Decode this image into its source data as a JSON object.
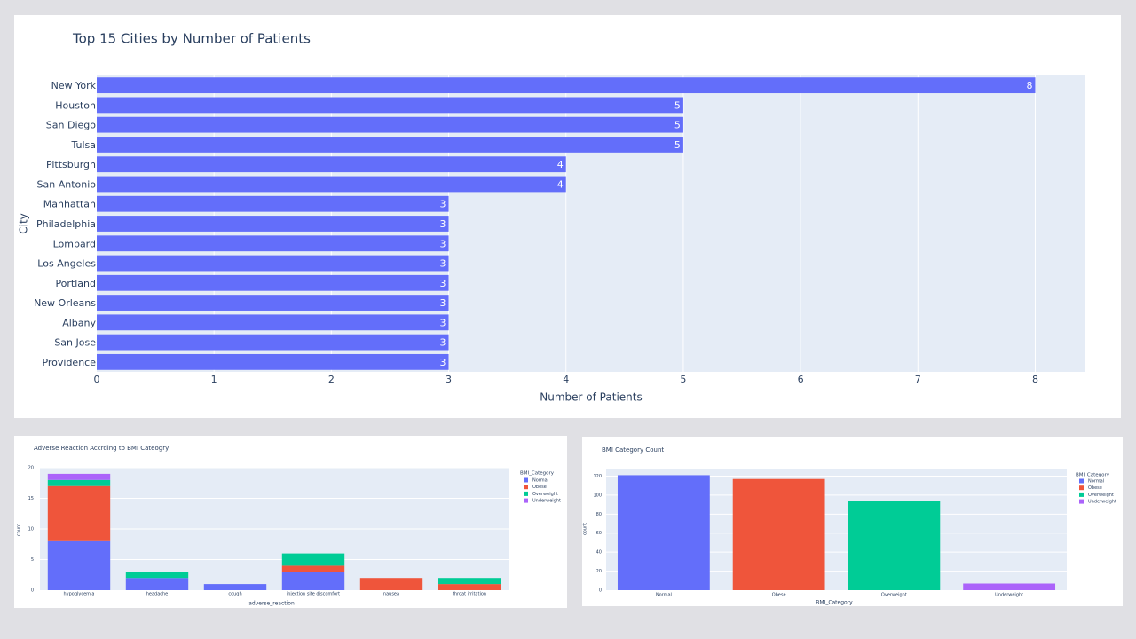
{
  "colors": {
    "plot_bg": "#e5ecf6",
    "grid": "#ffffff",
    "text": "#2a3f5f",
    "normal": "#636efa",
    "obese": "#ef553b",
    "overweight": "#00cc96",
    "underweight": "#ab63fa"
  },
  "charts": {
    "top": {
      "title": "Top 15 Cities by Number of Patients",
      "xlabel": "Number of Patients",
      "ylabel": "City"
    },
    "adverse": {
      "title": "Adverse Reaction Accrding to BMI Cateogry",
      "xlabel": "adverse_reaction",
      "ylabel": "count",
      "legend_title": "BMI_Category"
    },
    "bmi": {
      "title": "BMI Category Count",
      "xlabel": "BMI_Category",
      "ylabel": "count",
      "legend_title": "BMI_Category"
    }
  },
  "chart_data": [
    {
      "type": "bar",
      "orientation": "horizontal",
      "title": "Top 15 Cities by Number of Patients",
      "xlabel": "Number of Patients",
      "ylabel": "City",
      "categories": [
        "New York",
        "Houston",
        "San Diego",
        "Tulsa",
        "Pittsburgh",
        "San Antonio",
        "Manhattan",
        "Philadelphia",
        "Lombard",
        "Los Angeles",
        "Portland",
        "New Orleans",
        "Albany",
        "San Jose",
        "Providence"
      ],
      "values": [
        8,
        5,
        5,
        5,
        4,
        4,
        3,
        3,
        3,
        3,
        3,
        3,
        3,
        3,
        3
      ],
      "xlim": [
        0,
        8.42
      ],
      "xticks": [
        0,
        1,
        2,
        3,
        4,
        5,
        6,
        7,
        8
      ],
      "data_labels": true,
      "grid": true
    },
    {
      "type": "bar",
      "stacked": true,
      "title": "Adverse Reaction Accrding to BMI Cateogry",
      "xlabel": "adverse_reaction",
      "ylabel": "count",
      "legend_title": "BMI_Category",
      "legend_position": "right",
      "categories": [
        "hypoglycemia",
        "headache",
        "cough",
        "injection site discomfort",
        "nausea",
        "throat irritation"
      ],
      "series": [
        {
          "name": "Normal",
          "values": [
            8,
            2,
            1,
            3,
            0,
            0
          ]
        },
        {
          "name": "Obese",
          "values": [
            9,
            0,
            0,
            1,
            2,
            1
          ]
        },
        {
          "name": "Overweight",
          "values": [
            1,
            1,
            0,
            2,
            0,
            1
          ]
        },
        {
          "name": "Underweight",
          "values": [
            1,
            0,
            0,
            0,
            0,
            0
          ]
        }
      ],
      "ylim": [
        0,
        20
      ],
      "yticks": [
        0,
        5,
        10,
        15,
        20
      ],
      "grid": true
    },
    {
      "type": "bar",
      "title": "BMI Category Count",
      "xlabel": "BMI_Category",
      "ylabel": "count",
      "legend_title": "BMI_Category",
      "legend_position": "right",
      "categories": [
        "Normal",
        "Obese",
        "Overweight",
        "Underweight"
      ],
      "values": [
        121,
        117,
        94,
        7
      ],
      "ylim": [
        0,
        127
      ],
      "yticks": [
        0,
        20,
        40,
        60,
        80,
        100,
        120
      ],
      "grid": true
    }
  ]
}
